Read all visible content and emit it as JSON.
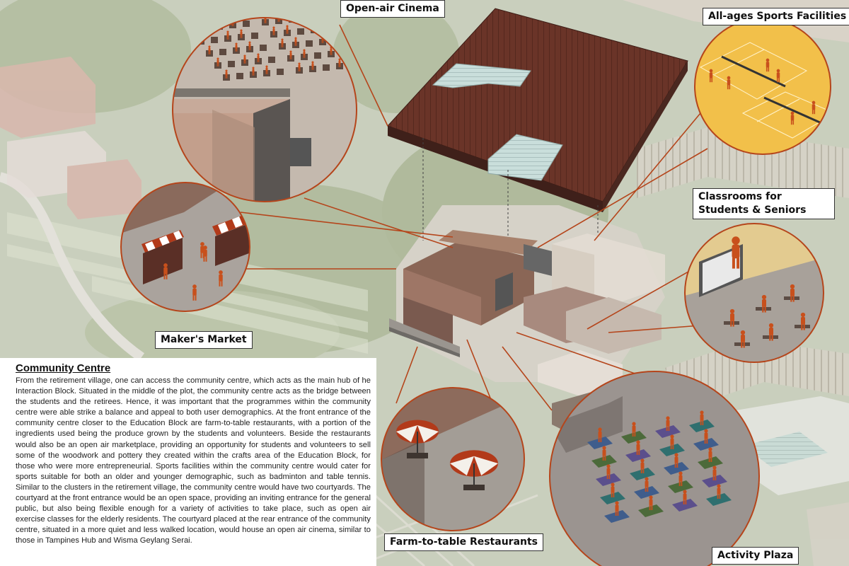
{
  "labels": {
    "open_air_cinema": "Open-air Cinema",
    "sports_facilities": "All-ages Sports Facilities",
    "classrooms": "Classrooms for Students & Seniors",
    "makers_market": "Maker's Market",
    "restaurants": "Farm-to-table Restaurants",
    "activity_plaza": "Activity Plaza"
  },
  "description": {
    "title": "Community Centre",
    "body": "From the retirement village, one can access the community centre, which acts as the main hub of he Interaction Block. Situated in the middle of the plot, the community centre acts as the bridge between the students and the retirees. Hence, it was important that the programmes within the community centre were able strike a balance and appeal to both user demographics. At the front entrance of the community centre closer to the Education Block are farm-to-table restaurants, with a portion of the ingredients used being the produce grown by the students and volunteers. Beside the restaurants would also be an open air marketplace, providing an opportunity for students and volunteers to sell some of the woodwork and pottery they created within the crafts area of the Education Block, for those who were more entrepreneurial. Sports facilities within the community centre would cater for sports suitable for both an older and younger demographic, such as badminton and table tennis. Similar to the clusters in the retirement village, the community centre would have two courtyards. The courtyard at the front entrance would be an open space, providing an inviting entrance for the general public, but also being flexible enough for a variety of activities to take place, such as open air exercise classes for the elderly residents. The courtyard placed at the rear entrance of the community centre, situated in a more quiet and less walked location, would house an open air cinema, similar to those in Tampines Hub and Wisma Geylang Serai."
  },
  "colors": {
    "ground": "#cbd1c0",
    "lawn": "#b7c3a2",
    "figure": "#c8501c",
    "leader_line": "#b5451b",
    "circle_border": "#b5451b",
    "roof": "#6a3428",
    "court": "#f2c04a",
    "plaza_floor": "#9b9490"
  }
}
